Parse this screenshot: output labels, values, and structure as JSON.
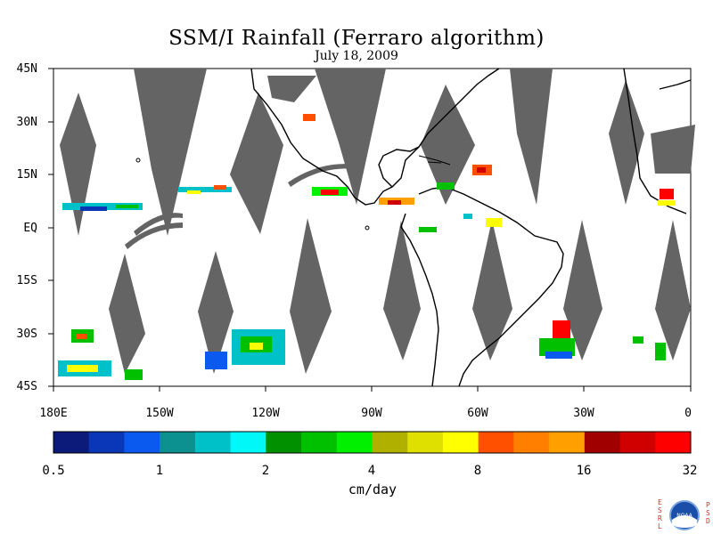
{
  "title": "SSM/I Rainfall (Ferraro algorithm)",
  "date": "July 18, 2009",
  "lat_labels": [
    "45N",
    "30N",
    "15N",
    "EQ",
    "15S",
    "30S",
    "45S"
  ],
  "lon_labels": [
    "180E",
    "150W",
    "120W",
    "90W",
    "60W",
    "30W",
    "0"
  ],
  "colorbar": {
    "colors": [
      "#0c1a7a",
      "#0a36b8",
      "#0a5af0",
      "#0d9090",
      "#00c0c8",
      "#00f8f8",
      "#009000",
      "#00c000",
      "#00f000",
      "#b0b000",
      "#e0e000",
      "#ffff00",
      "#ff5000",
      "#ff8000",
      "#ffa000",
      "#a00000",
      "#d00000",
      "#ff0000"
    ],
    "tick_labels": [
      "0.5",
      "1",
      "2",
      "4",
      "8",
      "16",
      "32"
    ],
    "units": "cm/day"
  },
  "logo": {
    "left_letters": "ESRL",
    "right_letters": "PSD",
    "center": "NOAA"
  }
}
